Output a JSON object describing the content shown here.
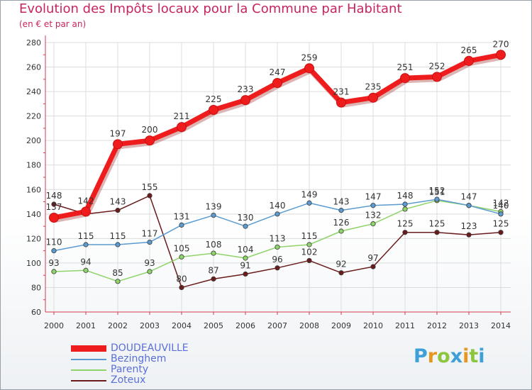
{
  "chart_data": {
    "type": "line",
    "title": "Evolution des Impôts locaux pour la Commune par Habitant",
    "subtitle": "(en € et par an)",
    "x": [
      "2000",
      "2001",
      "2002",
      "2003",
      "2004",
      "2005",
      "2006",
      "2007",
      "2008",
      "2009",
      "2010",
      "2011",
      "2012",
      "2013",
      "2014"
    ],
    "y_ticks": [
      "60",
      "80",
      "100",
      "120",
      "140",
      "160",
      "180",
      "200",
      "220",
      "240",
      "260",
      "280"
    ],
    "ylim": [
      60,
      280
    ],
    "grid": true,
    "legend_position": "bottom-left",
    "series": [
      {
        "name": "Zoteux",
        "color": "#6b1b1b",
        "values": [
          148,
          140,
          143,
          155,
          80,
          87,
          91,
          96,
          102,
          92,
          97,
          125,
          125,
          123,
          125
        ]
      },
      {
        "name": "Parenty",
        "color": "#8fd46a",
        "values": [
          93,
          94,
          85,
          93,
          105,
          108,
          104,
          113,
          115,
          126,
          132,
          144,
          151,
          147,
          142
        ]
      },
      {
        "name": "Bezinghem",
        "color": "#5b9bd0",
        "values": [
          110,
          115,
          115,
          117,
          131,
          139,
          130,
          140,
          149,
          143,
          147,
          148,
          152,
          147,
          140
        ]
      },
      {
        "name": "DOUDEAUVILLE",
        "color": "#ee1c1c",
        "values": [
          137,
          142,
          197,
          200,
          211,
          225,
          233,
          247,
          259,
          231,
          235,
          251,
          252,
          265,
          270
        ]
      }
    ],
    "labels": {
      "Zoteux": [
        "148",
        "",
        "143",
        "155",
        "80",
        "87",
        "91",
        "96",
        "102",
        "92",
        "97",
        "125",
        "125",
        "123",
        "125"
      ],
      "Parenty": [
        "93",
        "94",
        "85",
        "93",
        "105",
        "108",
        "104",
        "113",
        "115",
        "126",
        "132",
        "",
        "151",
        "",
        "142"
      ],
      "Bezinghem": [
        "110",
        "115",
        "115",
        "117",
        "131",
        "139",
        "130",
        "140",
        "149",
        "143",
        "147",
        "148",
        "152",
        "147",
        "140"
      ],
      "DOUDEAUVILLE": [
        "137",
        "142",
        "197",
        "200",
        "211",
        "225",
        "233",
        "247",
        "259",
        "231",
        "235",
        "251",
        "252",
        "265",
        "270"
      ]
    }
  },
  "legend": {
    "items": [
      {
        "label": "DOUDEAUVILLE",
        "color": "#ee1c1c"
      },
      {
        "label": "Bezinghem",
        "color": "#5b9bd0"
      },
      {
        "label": "Parenty",
        "color": "#8fd46a"
      },
      {
        "label": "Zoteux",
        "color": "#6b1b1b"
      }
    ]
  },
  "brand": {
    "letters": [
      "P",
      "r",
      "o",
      "x",
      "i",
      "t",
      "i"
    ],
    "colors": [
      "#3fa0d8",
      "#e8961e",
      "#8cc63e",
      "#3fa0d8",
      "#e8961e",
      "#8cc63e",
      "#3fa0d8"
    ]
  }
}
